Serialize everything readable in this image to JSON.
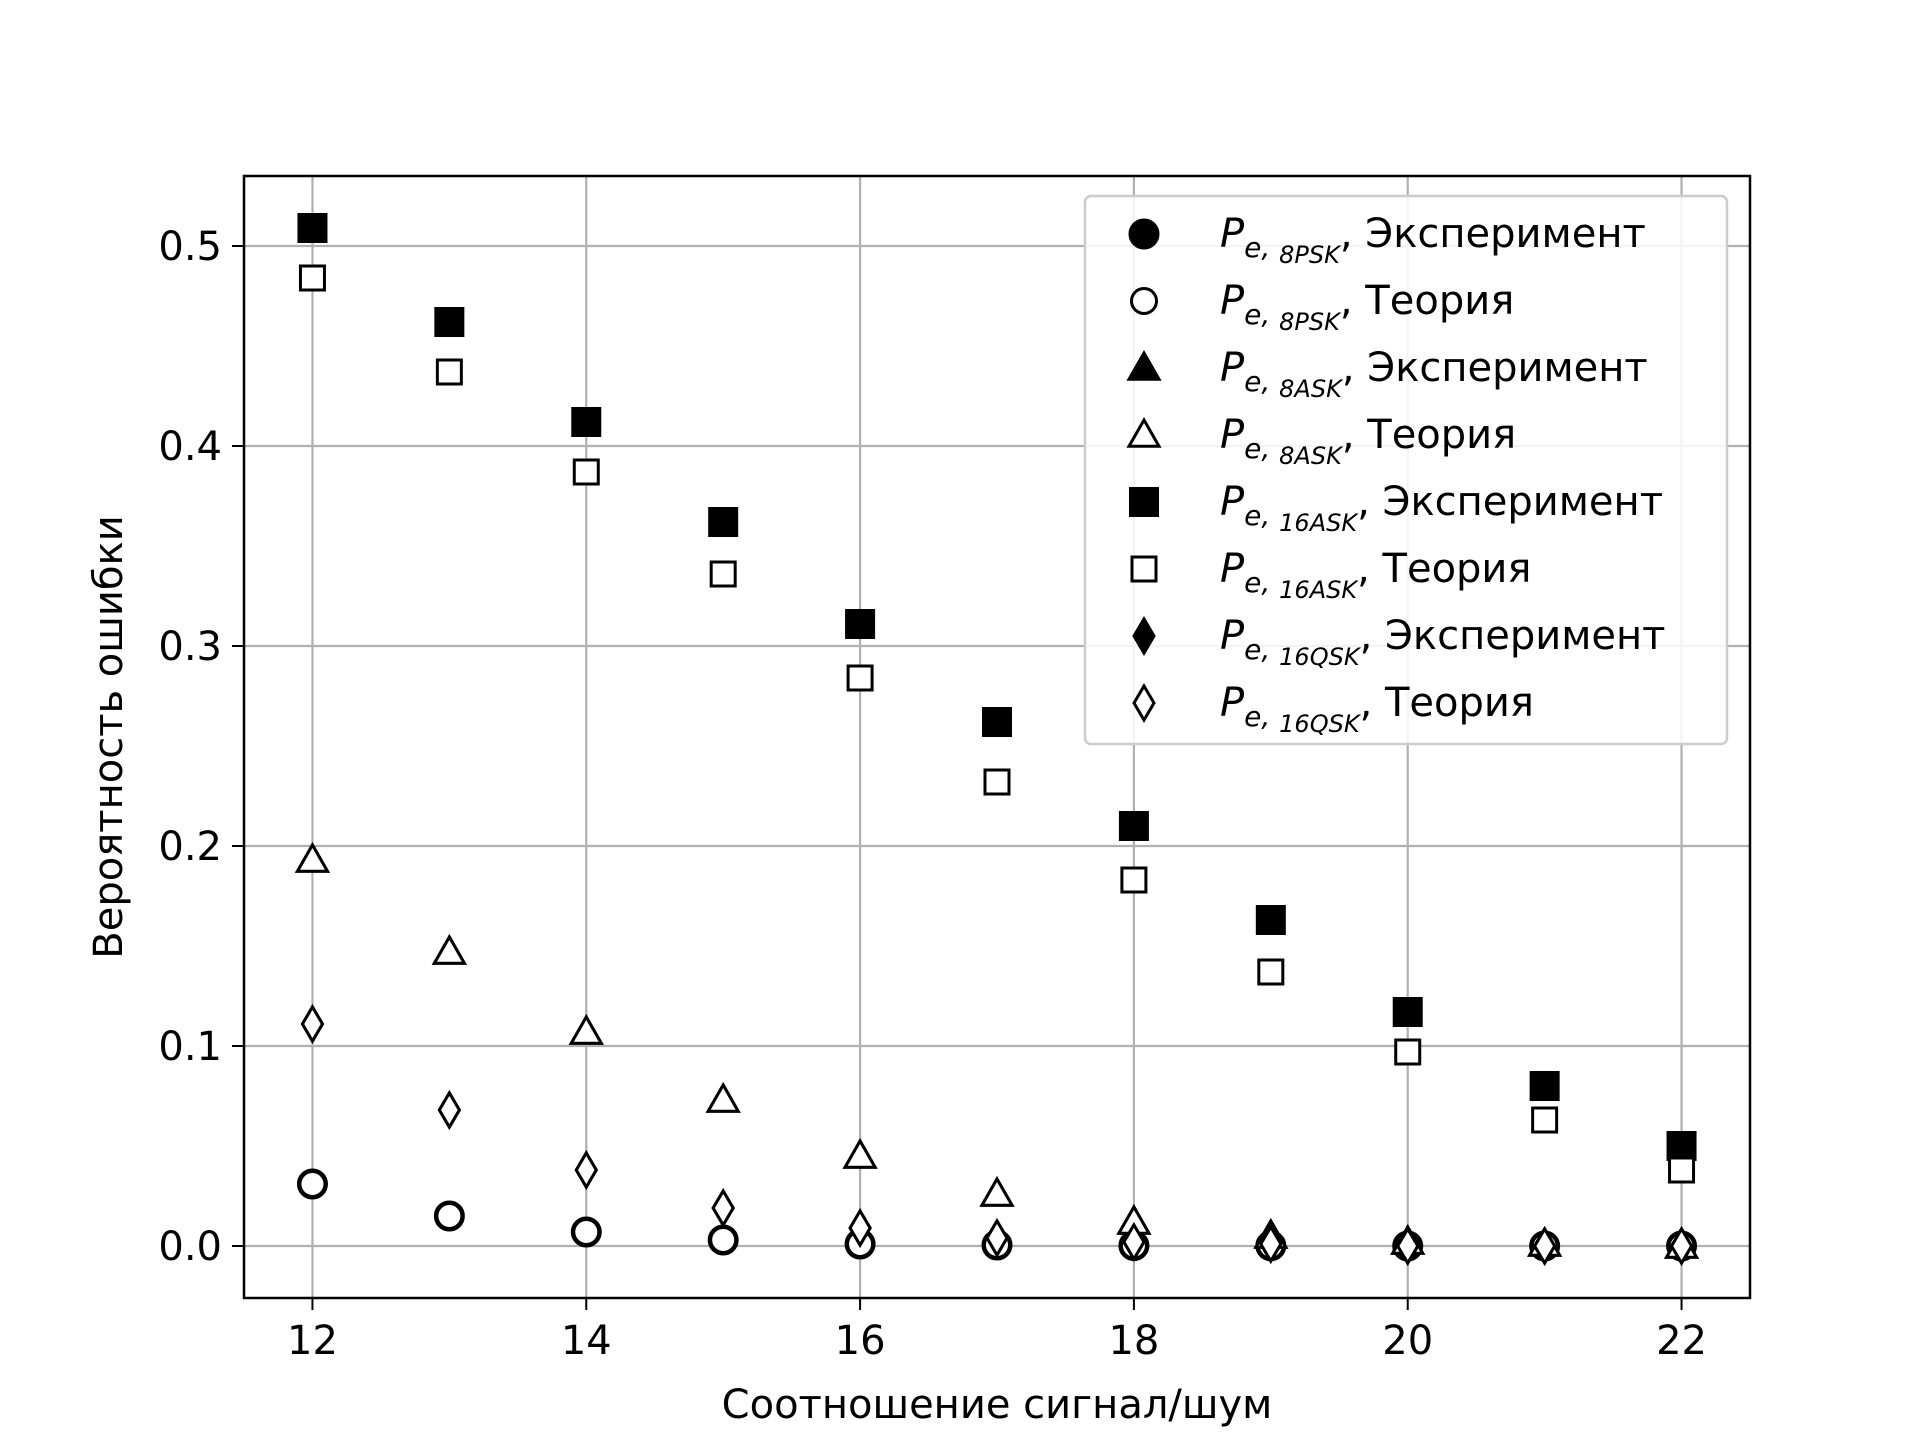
{
  "chart_data": {
    "type": "scatter",
    "xlabel": "Соотношение сигнал/шум",
    "ylabel": "Вероятность ошибки",
    "xlim": [
      11.5,
      22.5
    ],
    "ylim": [
      -0.026,
      0.535
    ],
    "xticks": [
      12,
      14,
      16,
      18,
      20,
      22
    ],
    "xtick_labels": [
      "12",
      "14",
      "16",
      "18",
      "20",
      "22"
    ],
    "yticks": [
      0.0,
      0.1,
      0.2,
      0.3,
      0.4,
      0.5
    ],
    "ytick_labels": [
      "0.0",
      "0.1",
      "0.2",
      "0.3",
      "0.4",
      "0.5"
    ],
    "grid": true,
    "legend_position": "upper right",
    "x": [
      12,
      13,
      14,
      15,
      16,
      17,
      18,
      19,
      20,
      21,
      22
    ],
    "series": [
      {
        "marker": "circle-filled",
        "legend": {
          "sym": "P",
          "sub": "e,",
          "subsub": "8PSK",
          "text": ", Эксперимент"
        },
        "values": [
          0.031,
          0.015,
          0.007,
          0.003,
          0.001,
          0.0005,
          0.0002,
          0.0001,
          0.0,
          0.0,
          0.0
        ]
      },
      {
        "marker": "circle-open",
        "legend": {
          "sym": "P",
          "sub": "e,",
          "subsub": "8PSK",
          "text": ", Теория"
        },
        "values": [
          0.031,
          0.015,
          0.007,
          0.003,
          0.001,
          0.0005,
          0.0002,
          0.0001,
          0.0,
          0.0,
          0.0
        ]
      },
      {
        "marker": "triangle-filled",
        "legend": {
          "sym": "P",
          "sub": "e,",
          "subsub": "8ASK",
          "text": ", Эксперимент"
        },
        "values": [
          0.193,
          0.147,
          0.107,
          0.073,
          0.045,
          0.026,
          0.012,
          0.005,
          0.002,
          0.001,
          0.0
        ]
      },
      {
        "marker": "triangle-open",
        "legend": {
          "sym": "P",
          "sub": "e,",
          "subsub": "8ASK",
          "text": ", Теория"
        },
        "values": [
          0.193,
          0.147,
          0.107,
          0.073,
          0.045,
          0.026,
          0.012,
          0.005,
          0.002,
          0.001,
          0.0
        ]
      },
      {
        "marker": "square-filled",
        "legend": {
          "sym": "P",
          "sub": "e,",
          "subsub": "16ASK",
          "text": ", Эксперимент"
        },
        "values": [
          0.509,
          0.462,
          0.412,
          0.362,
          0.311,
          0.262,
          0.21,
          0.163,
          0.117,
          0.08,
          0.05
        ]
      },
      {
        "marker": "square-open",
        "legend": {
          "sym": "P",
          "sub": "e,",
          "subsub": "16ASK",
          "text": ", Теория"
        },
        "values": [
          0.484,
          0.437,
          0.387,
          0.336,
          0.284,
          0.232,
          0.183,
          0.137,
          0.097,
          0.063,
          0.038
        ]
      },
      {
        "marker": "diamond-filled",
        "legend": {
          "sym": "P",
          "sub": "e,",
          "subsub": "16QSK",
          "text": ", Эксперимент"
        },
        "values": [
          0.111,
          0.068,
          0.038,
          0.019,
          0.009,
          0.004,
          0.002,
          0.001,
          0.0,
          0.0,
          0.0
        ]
      },
      {
        "marker": "diamond-open",
        "legend": {
          "sym": "P",
          "sub": "e,",
          "subsub": "16QSK",
          "text": ", Теория"
        },
        "values": [
          0.111,
          0.068,
          0.038,
          0.019,
          0.009,
          0.004,
          0.002,
          0.001,
          0.0,
          0.0,
          0.0
        ]
      }
    ]
  }
}
